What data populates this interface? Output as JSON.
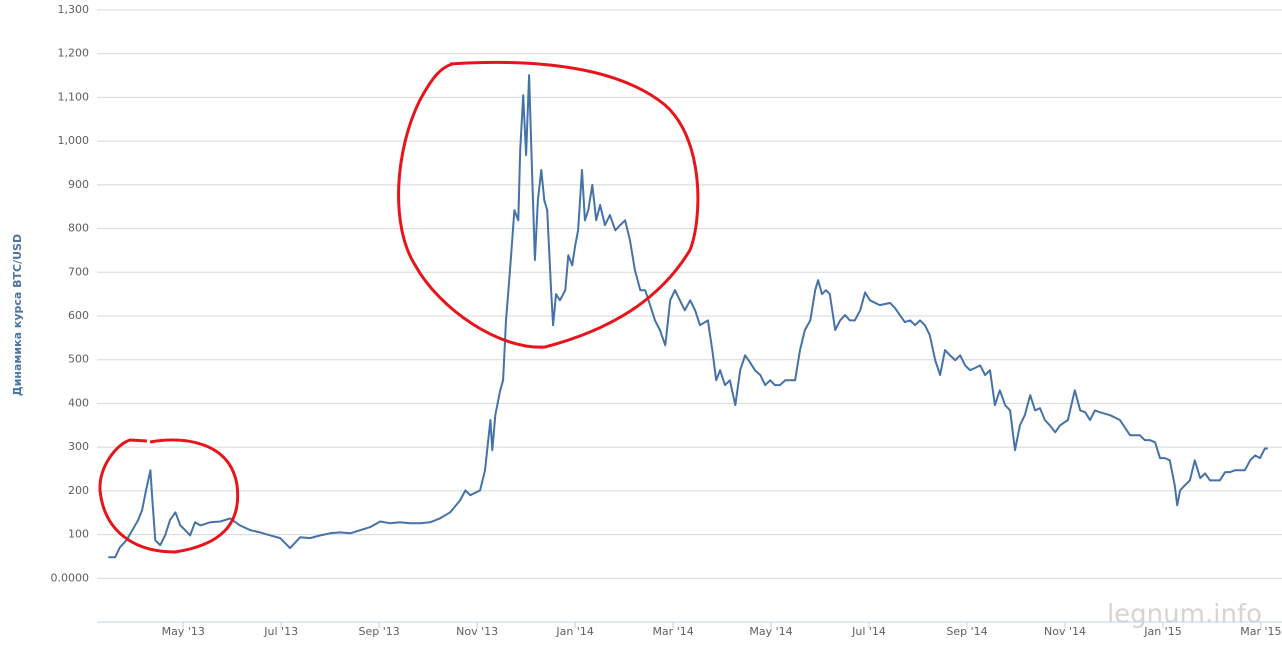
{
  "chart_data": {
    "type": "line",
    "y_axis_label": "Динамика курса BTC/USD",
    "watermark": "legnum.info",
    "color": "#4572a7",
    "grid": true,
    "xlim": [
      2.24,
      26.43
    ],
    "ylim": [
      -100,
      1300
    ],
    "xticks": [
      {
        "value": 4,
        "label": "May '13"
      },
      {
        "value": 6,
        "label": "Jul '13"
      },
      {
        "value": 8,
        "label": "Sep '13"
      },
      {
        "value": 10,
        "label": "Nov '13"
      },
      {
        "value": 12,
        "label": "Jan '14"
      },
      {
        "value": 14,
        "label": "Mar '14"
      },
      {
        "value": 16,
        "label": "May '14"
      },
      {
        "value": 18,
        "label": "Jul '14"
      },
      {
        "value": 20,
        "label": "Sep '14"
      },
      {
        "value": 22,
        "label": "Nov '14"
      },
      {
        "value": 24,
        "label": "Jan '15"
      },
      {
        "value": 26,
        "label": "Mar '15"
      }
    ],
    "yticks": [
      {
        "value": 0,
        "label": "0.0000"
      },
      100,
      200,
      300,
      400,
      500,
      600,
      700,
      800,
      900,
      {
        "value": 1000,
        "label": "1,000"
      },
      {
        "value": 1100,
        "label": "1,100"
      },
      {
        "value": 1200,
        "label": "1,200"
      },
      {
        "value": 1300,
        "label": "1,300"
      }
    ],
    "x": [
      2.47,
      2.61,
      2.71,
      2.84,
      2.96,
      3.08,
      3.16,
      3.24,
      3.33,
      3.37,
      3.43,
      3.53,
      3.63,
      3.73,
      3.84,
      3.94,
      4.04,
      4.14,
      4.24,
      4.35,
      4.55,
      4.76,
      4.96,
      5.16,
      5.37,
      5.57,
      5.78,
      5.98,
      6.18,
      6.39,
      6.59,
      6.8,
      7.0,
      7.2,
      7.41,
      7.61,
      7.82,
      8.02,
      8.22,
      8.43,
      8.63,
      8.84,
      9.04,
      9.24,
      9.45,
      9.65,
      9.76,
      9.86,
      10.06,
      10.16,
      10.27,
      10.31,
      10.37,
      10.47,
      10.53,
      10.59,
      10.67,
      10.76,
      10.84,
      10.88,
      10.94,
      11.0,
      11.06,
      11.12,
      11.18,
      11.24,
      11.31,
      11.37,
      11.43,
      11.51,
      11.55,
      11.61,
      11.69,
      11.8,
      11.86,
      11.94,
      12.0,
      12.06,
      12.14,
      12.2,
      12.27,
      12.35,
      12.43,
      12.51,
      12.61,
      12.71,
      12.82,
      12.92,
      13.02,
      13.12,
      13.22,
      13.33,
      13.43,
      13.53,
      13.63,
      13.73,
      13.84,
      13.94,
      14.04,
      14.14,
      14.24,
      14.35,
      14.45,
      14.55,
      14.71,
      14.8,
      14.88,
      14.96,
      15.06,
      15.16,
      15.27,
      15.37,
      15.47,
      15.57,
      15.67,
      15.78,
      15.88,
      15.98,
      16.08,
      16.18,
      16.29,
      16.39,
      16.49,
      16.59,
      16.69,
      16.8,
      16.9,
      16.96,
      17.04,
      17.12,
      17.2,
      17.31,
      17.41,
      17.51,
      17.61,
      17.71,
      17.82,
      17.92,
      18.02,
      18.22,
      18.43,
      18.53,
      18.63,
      18.73,
      18.84,
      18.94,
      19.04,
      19.14,
      19.24,
      19.35,
      19.45,
      19.55,
      19.65,
      19.76,
      19.86,
      19.96,
      20.06,
      20.16,
      20.27,
      20.37,
      20.47,
      20.57,
      20.67,
      20.78,
      20.88,
      20.98,
      21.08,
      21.18,
      21.29,
      21.39,
      21.49,
      21.59,
      21.69,
      21.8,
      21.9,
      22.06,
      22.2,
      22.31,
      22.41,
      22.51,
      22.61,
      22.71,
      22.92,
      23.12,
      23.33,
      23.53,
      23.63,
      23.73,
      23.84,
      23.94,
      24.04,
      24.14,
      24.24,
      24.29,
      24.35,
      24.45,
      24.55,
      24.65,
      24.76,
      24.86,
      24.96,
      25.16,
      25.27,
      25.37,
      25.47,
      25.57,
      25.67,
      25.78,
      25.88,
      25.98,
      26.08,
      26.14
    ],
    "values": [
      48,
      48,
      71,
      87,
      110,
      133,
      156,
      201,
      247,
      178,
      87,
      76,
      98,
      133,
      151,
      121,
      110,
      98,
      128,
      121,
      128,
      130,
      137,
      121,
      110,
      105,
      98,
      92,
      69,
      94,
      92,
      98,
      103,
      105,
      103,
      110,
      117,
      130,
      126,
      128,
      126,
      126,
      128,
      137,
      151,
      178,
      201,
      190,
      201,
      247,
      362,
      293,
      373,
      430,
      453,
      590,
      705,
      842,
      819,
      979,
      1105,
      968,
      1151,
      934,
      728,
      865,
      934,
      865,
      842,
      659,
      579,
      650,
      636,
      659,
      739,
      716,
      760,
      796,
      934,
      819,
      842,
      900,
      819,
      854,
      808,
      831,
      796,
      808,
      819,
      773,
      705,
      659,
      659,
      625,
      590,
      568,
      533,
      636,
      659,
      636,
      613,
      636,
      613,
      579,
      590,
      522,
      453,
      476,
      442,
      453,
      396,
      476,
      510,
      494,
      476,
      465,
      442,
      453,
      442,
      442,
      453,
      453,
      453,
      522,
      568,
      590,
      659,
      682,
      650,
      659,
      650,
      568,
      590,
      602,
      590,
      590,
      613,
      654,
      636,
      625,
      630,
      618,
      602,
      586,
      590,
      579,
      590,
      579,
      556,
      499,
      465,
      522,
      510,
      499,
      510,
      487,
      476,
      481,
      487,
      465,
      476,
      396,
      430,
      396,
      384,
      293,
      350,
      373,
      419,
      384,
      389,
      362,
      350,
      334,
      350,
      362,
      430,
      384,
      380,
      362,
      384,
      380,
      373,
      362,
      327,
      327,
      316,
      316,
      311,
      275,
      275,
      270,
      213,
      167,
      201,
      213,
      224,
      270,
      229,
      240,
      224,
      224,
      243,
      243,
      247,
      247,
      247,
      270,
      281,
      275,
      297,
      297
    ]
  }
}
